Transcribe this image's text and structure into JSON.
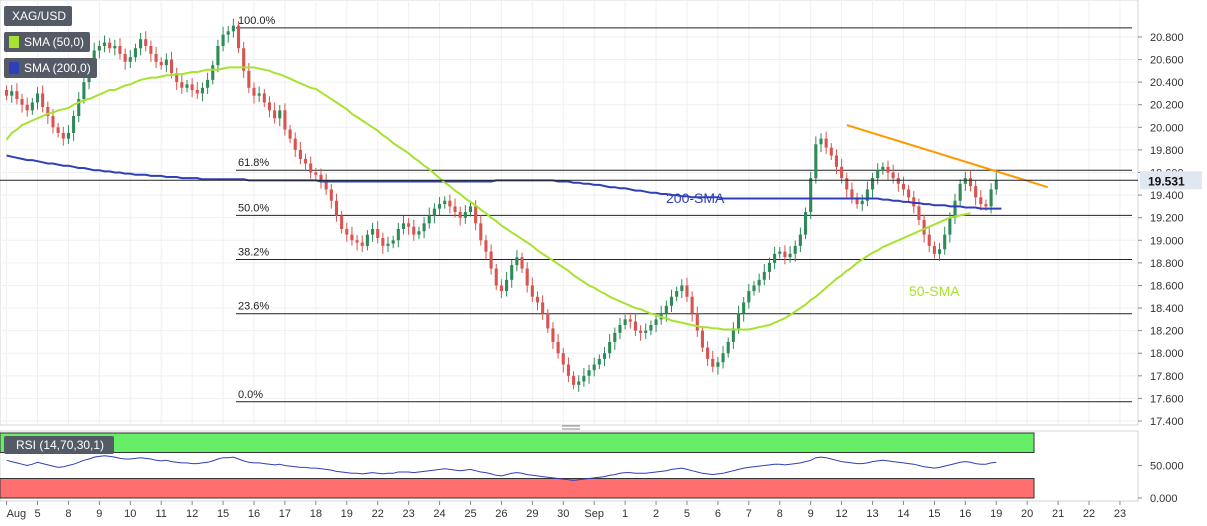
{
  "symbol": "XAG/USD",
  "last_price": "19.531",
  "legend": [
    {
      "label": "SMA (50,0)",
      "color": "#a7e22e"
    },
    {
      "label": "SMA (200,0)",
      "color": "#2f3fb8"
    }
  ],
  "annotations": {
    "sma200": "200-SMA",
    "sma50": "50-SMA"
  },
  "rsi_label": "RSI (14,70,30,1)",
  "colors": {
    "up": "#2e8b57",
    "down": "#d9534f",
    "sma50": "#a7e22e",
    "sma200": "#2f3fb8",
    "trendline": "#ff9900",
    "price_marker": "#dfe8f0",
    "rsi_line": "#2f3fb8",
    "rsi_overbought": "#66ee66",
    "rsi_oversold": "#ff6f6f"
  },
  "chart_data": [
    {
      "type": "candlestick",
      "title": "XAG/USD",
      "ylim": [
        17.4,
        20.95
      ],
      "y_ticks": [
        "20.800",
        "20.600",
        "20.400",
        "20.200",
        "20.000",
        "19.800",
        "19.600",
        "19.400",
        "19.200",
        "19.000",
        "18.800",
        "18.600",
        "18.400",
        "18.200",
        "18.000",
        "17.800",
        "17.600",
        "17.400"
      ],
      "x_ticks": [
        "Aug",
        "5",
        "8",
        "9",
        "10",
        "11",
        "12",
        "15",
        "16",
        "17",
        "18",
        "19",
        "22",
        "23",
        "24",
        "25",
        "26",
        "29",
        "30",
        "Sep",
        "1",
        "2",
        "5",
        "6",
        "7",
        "8",
        "9",
        "12",
        "13",
        "14",
        "15",
        "16",
        "19",
        "20",
        "21",
        "22",
        "23"
      ],
      "x_tick_bars": [
        0,
        6,
        12,
        18,
        24,
        30,
        36,
        42,
        48,
        54,
        60,
        66,
        72,
        78,
        84,
        90,
        96,
        102,
        108,
        114,
        120,
        126,
        132,
        138,
        144,
        150,
        156,
        162,
        168,
        174,
        180,
        186,
        192,
        198,
        204,
        210,
        216
      ],
      "fibonacci": [
        {
          "label": "100.0%",
          "value": 20.88
        },
        {
          "label": "61.8%",
          "value": 19.62
        },
        {
          "label": "50.0%",
          "value": 19.22
        },
        {
          "label": "38.2%",
          "value": 18.83
        },
        {
          "label": "23.6%",
          "value": 18.35
        },
        {
          "label": "0.0%",
          "value": 17.57
        }
      ],
      "close": [
        20.28,
        20.32,
        20.25,
        20.2,
        20.15,
        20.22,
        20.3,
        20.18,
        20.1,
        20.0,
        19.95,
        19.9,
        19.95,
        20.1,
        20.25,
        20.4,
        20.55,
        20.68,
        20.72,
        20.75,
        20.7,
        20.72,
        20.65,
        20.58,
        20.62,
        20.7,
        20.78,
        20.72,
        20.65,
        20.58,
        20.55,
        20.6,
        20.48,
        20.4,
        20.35,
        20.38,
        20.33,
        20.3,
        20.35,
        20.42,
        20.55,
        20.72,
        20.82,
        20.85,
        20.9,
        20.7,
        20.5,
        20.35,
        20.28,
        20.3,
        20.22,
        20.15,
        20.08,
        20.15,
        19.98,
        19.9,
        19.8,
        19.72,
        19.68,
        19.6,
        19.58,
        19.52,
        19.45,
        19.35,
        19.22,
        19.1,
        19.05,
        19.0,
        18.98,
        18.95,
        19.05,
        19.1,
        19.02,
        18.95,
        18.97,
        19.0,
        19.1,
        19.15,
        19.12,
        19.05,
        19.08,
        19.15,
        19.22,
        19.28,
        19.32,
        19.35,
        19.3,
        19.25,
        19.2,
        19.25,
        19.3,
        19.15,
        19.0,
        18.9,
        18.75,
        18.6,
        18.55,
        18.65,
        18.78,
        18.85,
        18.75,
        18.6,
        18.5,
        18.45,
        18.35,
        18.22,
        18.1,
        18.0,
        17.9,
        17.8,
        17.72,
        17.75,
        17.8,
        17.85,
        17.9,
        17.95,
        18.0,
        18.1,
        18.18,
        18.25,
        18.3,
        18.28,
        18.2,
        18.18,
        18.2,
        18.25,
        18.3,
        18.35,
        18.42,
        18.5,
        18.55,
        18.6,
        18.5,
        18.35,
        18.2,
        18.05,
        17.95,
        17.88,
        17.92,
        18.0,
        18.1,
        18.22,
        18.35,
        18.45,
        18.55,
        18.6,
        18.65,
        18.72,
        18.8,
        18.88,
        18.9,
        18.85,
        18.88,
        18.95,
        19.05,
        19.25,
        19.55,
        19.85,
        19.9,
        19.82,
        19.75,
        19.65,
        19.55,
        19.45,
        19.38,
        19.32,
        19.35,
        19.45,
        19.55,
        19.62,
        19.65,
        19.6,
        19.55,
        19.5,
        19.45,
        19.38,
        19.3,
        19.18,
        19.05,
        18.95,
        18.88,
        18.92,
        19.05,
        19.2,
        19.35,
        19.5,
        19.55,
        19.48,
        19.38,
        19.32,
        19.3,
        19.45,
        19.53
      ],
      "sma50": [
        19.89,
        19.95,
        19.98,
        20.02,
        20.04,
        20.06,
        20.08,
        20.1,
        20.12,
        20.13,
        20.15,
        20.16,
        20.17,
        20.2,
        20.22,
        20.24,
        20.25,
        20.27,
        20.29,
        20.31,
        20.33,
        20.33,
        20.35,
        20.37,
        20.38,
        20.4,
        20.42,
        20.43,
        20.44,
        20.44,
        20.45,
        20.46,
        20.46,
        20.47,
        20.47,
        20.48,
        20.49,
        20.49,
        20.5,
        20.51,
        20.51,
        20.51,
        20.52,
        20.53,
        20.53,
        20.53,
        20.53,
        20.53,
        20.53,
        20.52,
        20.51,
        20.5,
        20.48,
        20.47,
        20.45,
        20.43,
        20.41,
        20.39,
        20.37,
        20.35,
        20.34,
        20.31,
        20.28,
        20.25,
        20.22,
        20.19,
        20.16,
        20.12,
        20.09,
        20.06,
        20.03,
        20.0,
        19.97,
        19.93,
        19.9,
        19.86,
        19.83,
        19.8,
        19.77,
        19.73,
        19.7,
        19.66,
        19.63,
        19.59,
        19.55,
        19.51,
        19.48,
        19.44,
        19.41,
        19.37,
        19.34,
        19.31,
        19.27,
        19.24,
        19.2,
        19.17,
        19.13,
        19.1,
        19.07,
        19.04,
        19.01,
        18.98,
        18.95,
        18.91,
        18.88,
        18.85,
        18.82,
        18.79,
        18.76,
        18.73,
        18.69,
        18.66,
        18.63,
        18.6,
        18.58,
        18.55,
        18.53,
        18.5,
        18.48,
        18.46,
        18.44,
        18.42,
        18.4,
        18.39,
        18.37,
        18.35,
        18.34,
        18.32,
        18.31,
        18.29,
        18.28,
        18.27,
        18.26,
        18.25,
        18.24,
        18.23,
        18.23,
        18.22,
        18.22,
        18.21,
        18.21,
        18.21,
        18.21,
        18.21,
        18.21,
        18.22,
        18.23,
        18.24,
        18.25,
        18.27,
        18.29,
        18.31,
        18.34,
        18.37,
        18.4,
        18.43,
        18.47,
        18.5,
        18.54,
        18.58,
        18.62,
        18.66,
        18.69,
        18.73,
        18.76,
        18.8,
        18.83,
        18.86,
        18.89,
        18.91,
        18.94,
        18.96,
        18.98,
        19.0,
        19.02,
        19.04,
        19.06,
        19.08,
        19.1,
        19.12,
        19.14,
        19.16,
        19.18,
        19.2,
        19.21,
        19.22,
        19.23,
        19.24
      ],
      "sma200": [
        19.75,
        19.74,
        19.73,
        19.72,
        19.71,
        19.71,
        19.7,
        19.69,
        19.68,
        19.68,
        19.67,
        19.66,
        19.66,
        19.65,
        19.64,
        19.64,
        19.63,
        19.62,
        19.62,
        19.61,
        19.61,
        19.6,
        19.6,
        19.59,
        19.59,
        19.58,
        19.58,
        19.58,
        19.57,
        19.57,
        19.57,
        19.56,
        19.56,
        19.56,
        19.55,
        19.55,
        19.55,
        19.55,
        19.54,
        19.54,
        19.54,
        19.54,
        19.54,
        19.54,
        19.54,
        19.54,
        19.54,
        19.53,
        19.53,
        19.53,
        19.53,
        19.53,
        19.53,
        19.53,
        19.53,
        19.53,
        19.53,
        19.53,
        19.53,
        19.53,
        19.53,
        19.52,
        19.52,
        19.52,
        19.52,
        19.52,
        19.52,
        19.52,
        19.52,
        19.52,
        19.52,
        19.52,
        19.52,
        19.52,
        19.52,
        19.52,
        19.52,
        19.52,
        19.52,
        19.52,
        19.52,
        19.52,
        19.52,
        19.52,
        19.52,
        19.52,
        19.52,
        19.52,
        19.52,
        19.52,
        19.52,
        19.52,
        19.52,
        19.52,
        19.52,
        19.53,
        19.53,
        19.53,
        19.53,
        19.53,
        19.53,
        19.53,
        19.53,
        19.53,
        19.53,
        19.53,
        19.53,
        19.52,
        19.52,
        19.52,
        19.51,
        19.51,
        19.5,
        19.5,
        19.49,
        19.49,
        19.48,
        19.47,
        19.47,
        19.46,
        19.46,
        19.45,
        19.44,
        19.44,
        19.43,
        19.42,
        19.42,
        19.41,
        19.41,
        19.4,
        19.4,
        19.39,
        19.39,
        19.38,
        19.38,
        19.38,
        19.38,
        19.38,
        19.38,
        19.37,
        19.37,
        19.37,
        19.37,
        19.37,
        19.37,
        19.37,
        19.37,
        19.37,
        19.37,
        19.37,
        19.37,
        19.37,
        19.37,
        19.37,
        19.37,
        19.37,
        19.37,
        19.37,
        19.37,
        19.37,
        19.37,
        19.37,
        19.37,
        19.37,
        19.37,
        19.37,
        19.37,
        19.37,
        19.37,
        19.37,
        19.36,
        19.36,
        19.35,
        19.35,
        19.34,
        19.34,
        19.33,
        19.33,
        19.32,
        19.32,
        19.31,
        19.31,
        19.31,
        19.3,
        19.3,
        19.3,
        19.29,
        19.29,
        19.29,
        19.28,
        19.28,
        19.28,
        19.28,
        19.28
      ],
      "trendline": {
        "from": {
          "bar": 163,
          "value": 20.02
        },
        "to": {
          "bar": 202,
          "value": 19.47
        }
      }
    },
    {
      "type": "line",
      "title": "RSI (14,70,30,1)",
      "ylim": [
        0,
        100
      ],
      "y_ticks": [
        "50.000",
        "0.000"
      ],
      "overbought": 70,
      "oversold": 30,
      "values": [
        58,
        56,
        54,
        52,
        50,
        52,
        55,
        53,
        51,
        49,
        47,
        48,
        50,
        52,
        55,
        58,
        60,
        63,
        64,
        65,
        64,
        63,
        61,
        60,
        60,
        61,
        62,
        61,
        60,
        58,
        57,
        58,
        56,
        55,
        54,
        54,
        53,
        53,
        54,
        55,
        57,
        60,
        62,
        62,
        63,
        60,
        57,
        55,
        54,
        54,
        53,
        52,
        51,
        52,
        50,
        49,
        48,
        47,
        47,
        46,
        46,
        45,
        44,
        43,
        41,
        40,
        39,
        38,
        38,
        37,
        38,
        39,
        38,
        37,
        38,
        38,
        40,
        40,
        40,
        39,
        40,
        41,
        42,
        43,
        44,
        45,
        44,
        43,
        42,
        43,
        44,
        42,
        40,
        39,
        37,
        35,
        34,
        36,
        38,
        39,
        38,
        36,
        35,
        34,
        33,
        32,
        31,
        30,
        29,
        28,
        27,
        28,
        29,
        30,
        31,
        32,
        33,
        35,
        36,
        38,
        39,
        39,
        38,
        38,
        38,
        39,
        40,
        41,
        42,
        44,
        45,
        46,
        44,
        42,
        40,
        38,
        37,
        36,
        37,
        38,
        40,
        42,
        44,
        46,
        47,
        48,
        49,
        50,
        51,
        52,
        52,
        51,
        52,
        53,
        54,
        56,
        58,
        62,
        63,
        62,
        60,
        58,
        56,
        55,
        54,
        53,
        53,
        54,
        56,
        57,
        58,
        57,
        56,
        55,
        54,
        53,
        52,
        50,
        48,
        47,
        46,
        47,
        49,
        51,
        53,
        55,
        56,
        55,
        53,
        52,
        52,
        54,
        55
      ]
    }
  ]
}
